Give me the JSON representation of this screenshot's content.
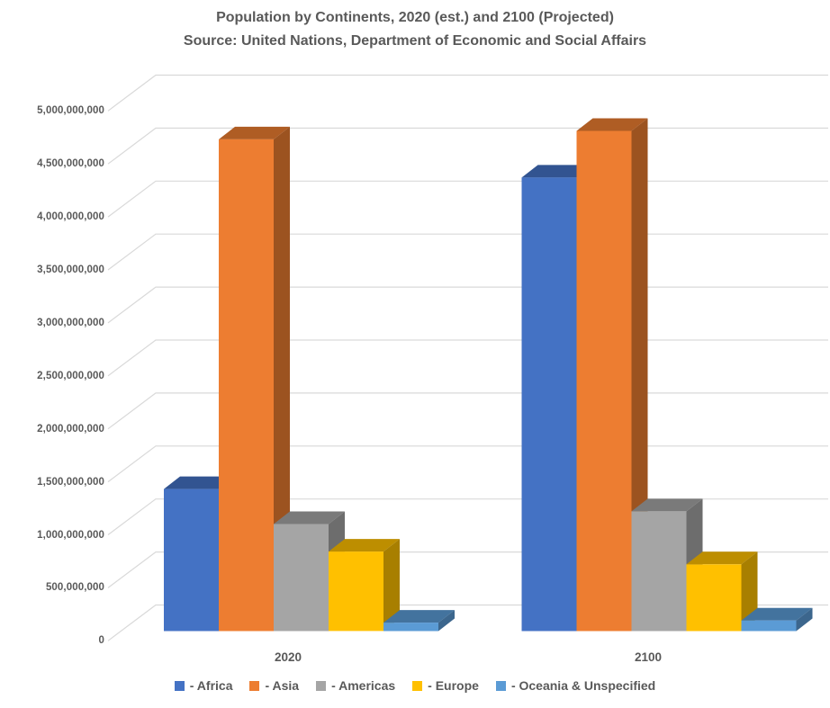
{
  "title": {
    "line1": "Population by Continents, 2020 (est.) and 2100 (Projected)",
    "line2": "Source: United Nations, Department of Economic and Social Affairs"
  },
  "chart_data": {
    "type": "bar",
    "projection": "3d",
    "title": "Population by Continents, 2020 (est.) and 2100 (Projected)",
    "subtitle": "Source: United Nations, Department of Economic and Social Affairs",
    "categories": [
      "2020",
      "2100"
    ],
    "series": [
      {
        "name": "Africa",
        "color": "#4472C4",
        "values": [
          1340000000,
          4280000000
        ]
      },
      {
        "name": "Asia",
        "color": "#ED7D31",
        "values": [
          4640000000,
          4720000000
        ]
      },
      {
        "name": "Americas",
        "color": "#A5A5A5",
        "values": [
          1010000000,
          1130000000
        ]
      },
      {
        "name": "Europe",
        "color": "#FFC000",
        "values": [
          750000000,
          630000000
        ]
      },
      {
        "name": "Oceania & Unspecified",
        "color": "#5B9BD5",
        "values": [
          80000000,
          100000000
        ]
      }
    ],
    "y_axis": {
      "min": 0,
      "max": 5000000000,
      "tick_step": 500000000,
      "tick_labels": [
        "0",
        "500,000,000",
        "1,000,000,000",
        "1,500,000,000",
        "2,000,000,000",
        "2,500,000,000",
        "3,000,000,000",
        "3,500,000,000",
        "4,000,000,000",
        "4,500,000,000",
        "5,000,000,000"
      ]
    },
    "xlabel": "",
    "ylabel": "",
    "gridlines": true,
    "legend": {
      "position": "bottom",
      "prefix": "- "
    }
  },
  "colors": {
    "text": "#595959",
    "gridline": "#D9D9D9",
    "background": "#FFFFFF"
  }
}
